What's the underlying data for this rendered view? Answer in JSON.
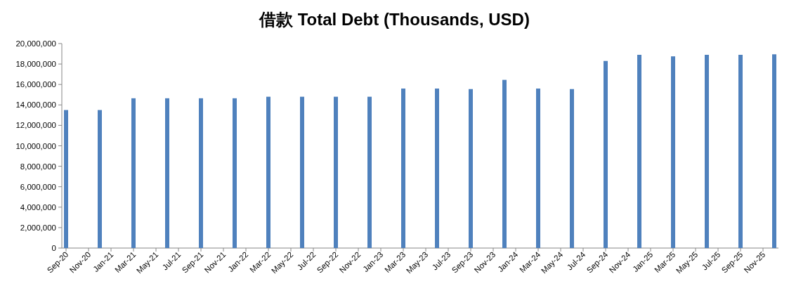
{
  "chart_data": {
    "type": "bar",
    "title": "借款 Total Debt (Thousands, USD)",
    "x": [
      "2020-09",
      "2020-12",
      "2021-03",
      "2021-06",
      "2021-09",
      "2021-12",
      "2022-03",
      "2022-06",
      "2022-09",
      "2022-12",
      "2023-03",
      "2023-06",
      "2023-09",
      "2023-12",
      "2024-03",
      "2024-06",
      "2024-09",
      "2024-12",
      "2025-03",
      "2025-06",
      "2025-09",
      "2025-12"
    ],
    "series": [
      {
        "color": "#4f81bd",
        "values": [
          13500000,
          13500000,
          14650000,
          14650000,
          14650000,
          14650000,
          14800000,
          14800000,
          14800000,
          14800000,
          15600000,
          15600000,
          15550000,
          16450000,
          15600000,
          15550000,
          18300000,
          18900000,
          18750000,
          18900000,
          18900000,
          18950000
        ]
      }
    ],
    "xlim": [
      "2020-09",
      "2025-12"
    ],
    "xticks": [
      {
        "value": "2020-09",
        "label": "Sep-20"
      },
      {
        "value": "2020-11",
        "label": "Nov-20"
      },
      {
        "value": "2021-01",
        "label": "Jan-21"
      },
      {
        "value": "2021-03",
        "label": "Mar-21"
      },
      {
        "value": "2021-05",
        "label": "May-21"
      },
      {
        "value": "2021-07",
        "label": "Jul-21"
      },
      {
        "value": "2021-09",
        "label": "Sep-21"
      },
      {
        "value": "2021-11",
        "label": "Nov-21"
      },
      {
        "value": "2022-01",
        "label": "Jan-22"
      },
      {
        "value": "2022-03",
        "label": "Mar-22"
      },
      {
        "value": "2022-05",
        "label": "May-22"
      },
      {
        "value": "2022-07",
        "label": "Jul-22"
      },
      {
        "value": "2022-09",
        "label": "Sep-22"
      },
      {
        "value": "2022-11",
        "label": "Nov-22"
      },
      {
        "value": "2023-01",
        "label": "Jan-23"
      },
      {
        "value": "2023-03",
        "label": "Mar-23"
      },
      {
        "value": "2023-05",
        "label": "May-23"
      },
      {
        "value": "2023-07",
        "label": "Jul-23"
      },
      {
        "value": "2023-09",
        "label": "Sep-23"
      },
      {
        "value": "2023-11",
        "label": "Nov-23"
      },
      {
        "value": "2024-01",
        "label": "Jan-24"
      },
      {
        "value": "2024-03",
        "label": "Mar-24"
      },
      {
        "value": "2024-05",
        "label": "May-24"
      },
      {
        "value": "2024-07",
        "label": "Jul-24"
      },
      {
        "value": "2024-09",
        "label": "Sep-24"
      },
      {
        "value": "2024-11",
        "label": "Nov-24"
      },
      {
        "value": "2025-01",
        "label": "Jan-25"
      },
      {
        "value": "2025-03",
        "label": "Mar-25"
      },
      {
        "value": "2025-05",
        "label": "May-25"
      },
      {
        "value": "2025-07",
        "label": "Jul-25"
      },
      {
        "value": "2025-09",
        "label": "Sep-25"
      },
      {
        "value": "2025-11",
        "label": "Nov-25"
      }
    ],
    "ylim": [
      0,
      20000000
    ],
    "yticks": [
      {
        "value": 0,
        "label": "0"
      },
      {
        "value": 2000000,
        "label": "2,000,000"
      },
      {
        "value": 4000000,
        "label": "4,000,000"
      },
      {
        "value": 6000000,
        "label": "6,000,000"
      },
      {
        "value": 8000000,
        "label": "8,000,000"
      },
      {
        "value": 10000000,
        "label": "10,000,000"
      },
      {
        "value": 12000000,
        "label": "12,000,000"
      },
      {
        "value": 14000000,
        "label": "14,000,000"
      },
      {
        "value": 16000000,
        "label": "16,000,000"
      },
      {
        "value": 18000000,
        "label": "18,000,000"
      },
      {
        "value": 20000000,
        "label": "20,000,000"
      }
    ],
    "grid": false
  }
}
